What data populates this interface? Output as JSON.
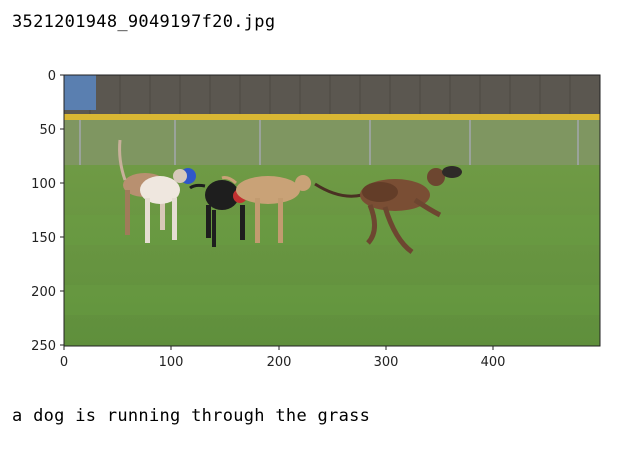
{
  "filename": "3521201948_9049197f20.jpg",
  "caption": "a dog is running through the grass",
  "image_description_icon": "greyhounds-running-photo",
  "axes": {
    "x_ticks": [
      "0",
      "100",
      "200",
      "300",
      "400"
    ],
    "y_ticks": [
      "0",
      "50",
      "100",
      "150",
      "200",
      "250"
    ]
  }
}
